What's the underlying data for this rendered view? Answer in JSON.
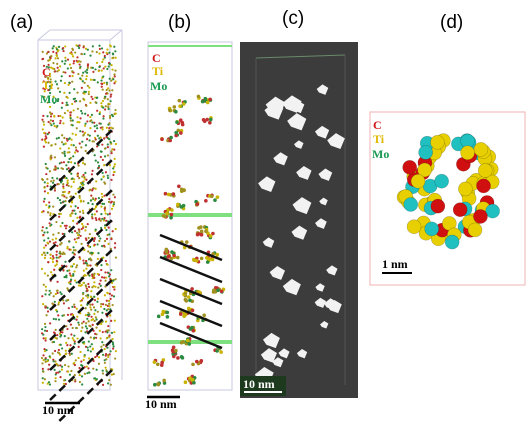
{
  "panels": [
    {
      "label": "(a)",
      "legend": [
        "C",
        "Ti",
        "Mo"
      ],
      "scale": "10 nm"
    },
    {
      "label": "(b)",
      "legend": [
        "C",
        "Ti",
        "Mo"
      ],
      "scale": "10 nm"
    },
    {
      "label": "(c)",
      "scale": "10 nm"
    },
    {
      "label": "(d)",
      "legend": [
        "C",
        "Ti",
        "Mo"
      ],
      "scale": "1 nm"
    }
  ]
}
